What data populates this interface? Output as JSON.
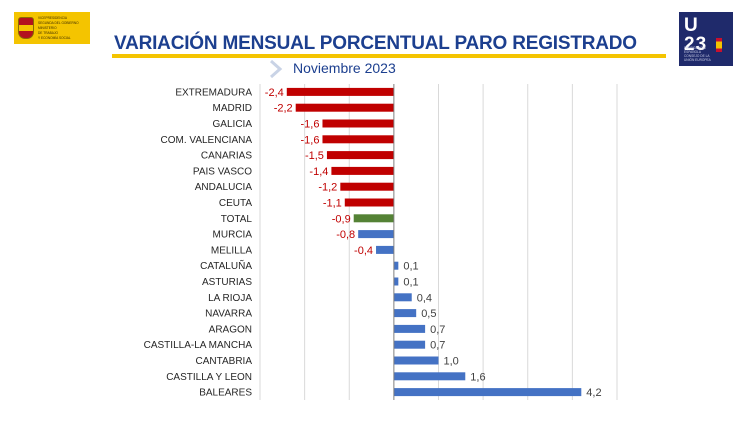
{
  "header": {
    "gov_logo_lines": [
      "VICEPRESIDENCIA",
      "SEGUNDA DEL GOBIERNO",
      "MINISTERIO",
      "DE TRABAJO",
      "Y ECONOMÍA SOCIAL"
    ],
    "eu_logo_big": "U",
    "eu_logo_big2": "23",
    "eu_logo_small": [
      "PRESIDENCIA",
      "ESPAÑOLA",
      "CONSEJO DE LA",
      "UNIÓN EUROPEA"
    ]
  },
  "chart_data": {
    "type": "bar",
    "orientation": "horizontal",
    "title": "VARIACIÓN MENSUAL PORCENTUAL PARO REGISTRADO",
    "subtitle": "Noviembre 2023",
    "xlabel": "",
    "ylabel": "",
    "xlim": [
      -3,
      5
    ],
    "grid": true,
    "categories": [
      "EXTREMADURA",
      "MADRID",
      "GALICIA",
      "COM. VALENCIANA",
      "CANARIAS",
      "PAIS VASCO",
      "ANDALUCIA",
      "CEUTA",
      "TOTAL",
      "MURCIA",
      "MELILLA",
      "CATALUÑA",
      "ASTURIAS",
      "LA RIOJA",
      "NAVARRA",
      "ARAGON",
      "CASTILLA-LA MANCHA",
      "CANTABRIA",
      "CASTILLA Y LEON",
      "BALEARES"
    ],
    "values": [
      -2.4,
      -2.2,
      -1.6,
      -1.6,
      -1.5,
      -1.4,
      -1.2,
      -1.1,
      -0.9,
      -0.8,
      -0.4,
      0.1,
      0.1,
      0.4,
      0.5,
      0.7,
      0.7,
      1.0,
      1.6,
      4.2
    ],
    "value_labels": [
      "-2,4",
      "-2,2",
      "-1,6",
      "-1,6",
      "-1,5",
      "-1,4",
      "-1,2",
      "-1,1",
      "-0,9",
      "-0,8",
      "-0,4",
      "0,1",
      "0,1",
      "0,4",
      "0,5",
      "0,7",
      "0,7",
      "1,0",
      "1,6",
      "4,2"
    ],
    "bar_colors": [
      "#c00000",
      "#c00000",
      "#c00000",
      "#c00000",
      "#c00000",
      "#c00000",
      "#c00000",
      "#c00000",
      "#548235",
      "#4472c4",
      "#4472c4",
      "#4472c4",
      "#4472c4",
      "#4472c4",
      "#4472c4",
      "#4472c4",
      "#4472c4",
      "#4472c4",
      "#4472c4",
      "#4472c4"
    ],
    "label_colors": [
      "#c00000",
      "#c00000",
      "#c00000",
      "#c00000",
      "#c00000",
      "#c00000",
      "#c00000",
      "#c00000",
      "#c00000",
      "#c00000",
      "#c00000",
      "#404040",
      "#404040",
      "#404040",
      "#404040",
      "#404040",
      "#404040",
      "#404040",
      "#404040",
      "#404040"
    ],
    "category_label_color": "#262626",
    "gridline_color": "#d9d9d9",
    "axis_color": "#7f7f7f"
  }
}
